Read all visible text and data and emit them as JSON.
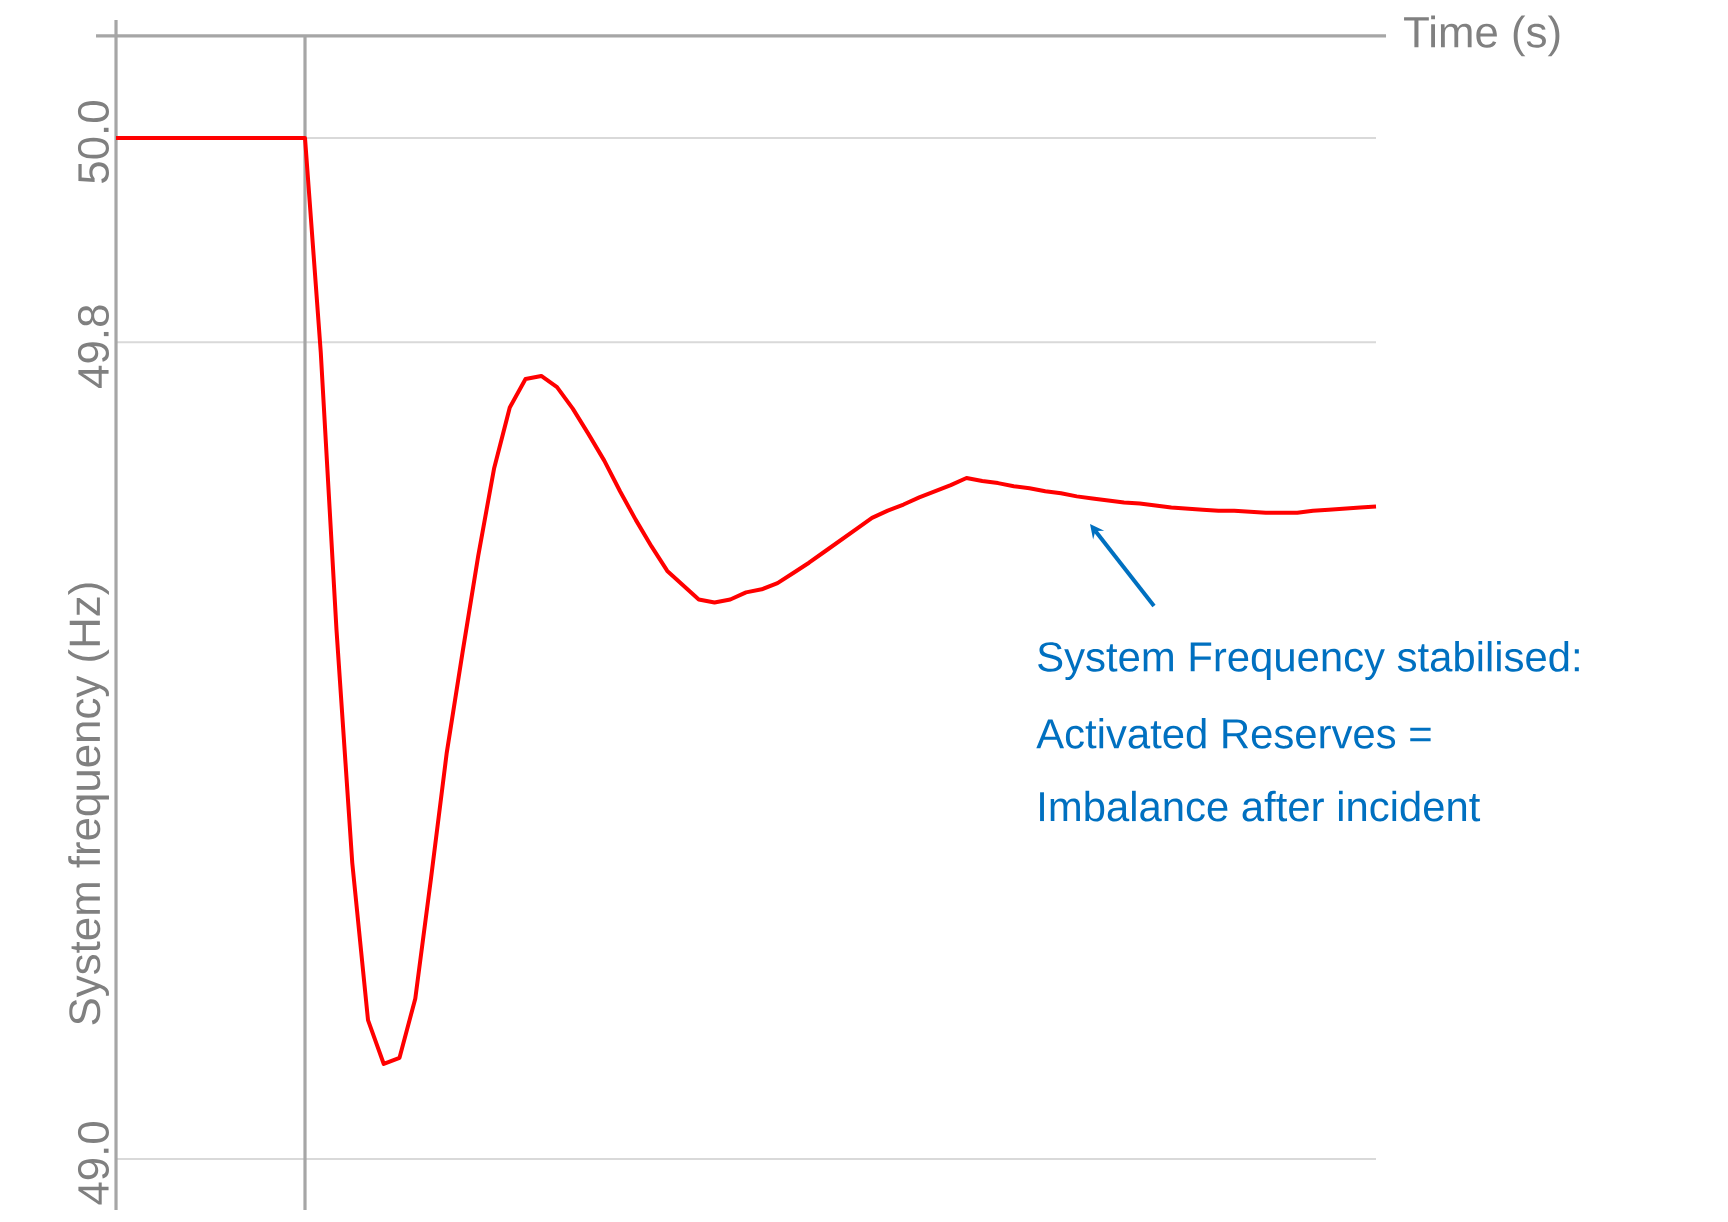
{
  "chart_data": {
    "type": "line",
    "xlabel": "Time (s)",
    "ylabel": "System frequency (Hz)",
    "categories": [
      null,
      null,
      null,
      null,
      null,
      null,
      null,
      null,
      null,
      null,
      null,
      null,
      null,
      null,
      null,
      null,
      null,
      null,
      null,
      null,
      null,
      null,
      null,
      null,
      null,
      null,
      null,
      null,
      null,
      null,
      null,
      null,
      null,
      null,
      null,
      null,
      null,
      null,
      null,
      null,
      null,
      null,
      null,
      null,
      null,
      null,
      null,
      null,
      null,
      null,
      null,
      null,
      null,
      null,
      null,
      null,
      null,
      null,
      null,
      null,
      null,
      null,
      null,
      null,
      null,
      null,
      null,
      null,
      null,
      null,
      null,
      null,
      null,
      null,
      null,
      null,
      null,
      null,
      null,
      null,
      null
    ],
    "series": [
      {
        "color": "#ff0000",
        "values": [
          50.0,
          50.0,
          50.0,
          50.0,
          50.0,
          50.0,
          50.0,
          50.0,
          50.0,
          50.0,
          50.0,
          50.0,
          50.0,
          49.79,
          49.518,
          49.29,
          49.136,
          49.093,
          49.099,
          49.157,
          49.275,
          49.398,
          49.496,
          49.591,
          49.676,
          49.736,
          49.764,
          49.767,
          49.756,
          49.735,
          49.71,
          49.684,
          49.654,
          49.626,
          49.6,
          49.576,
          49.562,
          49.548,
          49.545,
          49.548,
          49.555,
          49.558,
          49.564,
          49.574,
          49.584,
          49.595,
          49.606,
          49.617,
          49.628,
          49.635,
          49.641,
          49.648,
          49.654,
          49.66,
          49.667,
          49.664,
          49.662,
          49.659,
          49.657,
          49.654,
          49.652,
          49.649,
          49.647,
          49.645,
          49.643,
          49.642,
          49.64,
          49.638,
          49.637,
          49.636,
          49.635,
          49.635,
          49.634,
          49.633,
          49.633,
          49.633,
          49.635,
          49.636,
          49.637,
          49.638,
          49.639
        ]
      }
    ],
    "ylim": [
      48.95,
      50.1
    ],
    "yticks": [
      {
        "value": 50,
        "label": "50.0"
      },
      {
        "value": 49.8,
        "label": "49.8"
      },
      {
        "value": 49,
        "label": "49.0"
      }
    ],
    "tick_labels": "y",
    "grid": "y",
    "marker": "none",
    "line_style": "solid",
    "annotations": [
      "System Frequency stabilised:",
      "Activated Reserves =",
      "Imbalance after incident"
    ]
  }
}
